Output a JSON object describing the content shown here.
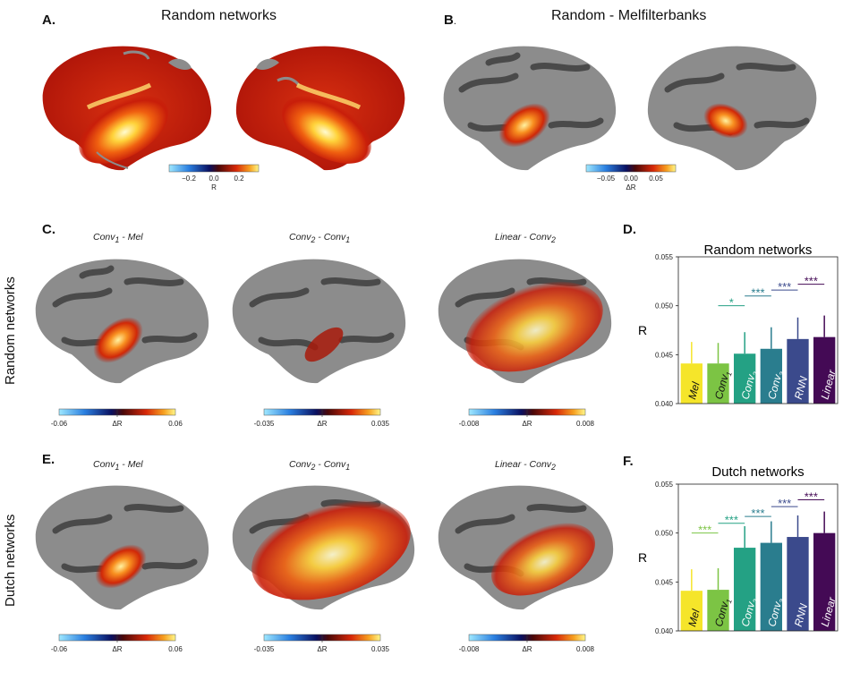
{
  "panels": {
    "A": {
      "label": "A.",
      "title": "Random networks",
      "colorbar": {
        "ticks": [
          "−0.2",
          "0.0",
          "0.2"
        ],
        "label": "R"
      }
    },
    "B": {
      "label": "B",
      "label_suffix": ".",
      "title": "Random - Melfilterbanks",
      "colorbar": {
        "ticks": [
          "−0.05",
          "0.00",
          "0.05"
        ],
        "label": "ΔR"
      }
    },
    "C": {
      "label": "C.",
      "row_label": "Random networks",
      "maps": [
        {
          "sub_a": "Conv",
          "sub_a_idx": "1",
          "sub_b": " - Mel",
          "sub_b_idx": "",
          "cb_min": "-0.06",
          "cb_mid": "ΔR",
          "cb_max": "0.06"
        },
        {
          "sub_a": "Conv",
          "sub_a_idx": "2",
          "sub_b": " - Conv",
          "sub_b_idx": "1",
          "cb_min": "-0.035",
          "cb_mid": "ΔR",
          "cb_max": "0.035"
        },
        {
          "sub_a": "Linear",
          "sub_a_idx": "",
          "sub_b": " - Conv",
          "sub_b_idx": "2",
          "cb_min": "-0.008",
          "cb_mid": "ΔR",
          "cb_max": "0.008"
        }
      ]
    },
    "E": {
      "label": "E.",
      "row_label": "Dutch networks",
      "maps": [
        {
          "sub_a": "Conv",
          "sub_a_idx": "1",
          "sub_b": " - Mel",
          "sub_b_idx": "",
          "cb_min": "-0.06",
          "cb_mid": "ΔR",
          "cb_max": "0.06"
        },
        {
          "sub_a": "Conv",
          "sub_a_idx": "2",
          "sub_b": " - Conv",
          "sub_b_idx": "1",
          "cb_min": "-0.035",
          "cb_mid": "ΔR",
          "cb_max": "0.035"
        },
        {
          "sub_a": "Linear",
          "sub_a_idx": "",
          "sub_b": " - Conv",
          "sub_b_idx": "2",
          "cb_min": "-0.008",
          "cb_mid": "ΔR",
          "cb_max": "0.008"
        }
      ]
    },
    "D": {
      "label": "D."
    },
    "F": {
      "label": "F."
    }
  },
  "colors": {
    "cortex_light": "#8c8c8c",
    "cortex_dark": "#4a4a4a",
    "Mel": "#f5e52a",
    "Conv1": "#7cc444",
    "Conv2": "#24a184",
    "Conv3": "#2a7d8e",
    "RNN": "#3b4a8c",
    "Linear": "#440a55"
  },
  "chart_data": [
    {
      "type": "bar",
      "id": "D",
      "title": "Random networks",
      "ylabel": "R",
      "ylim": [
        0.04,
        0.055
      ],
      "yticks": [
        "0.040",
        "0.045",
        "0.050",
        "0.055"
      ],
      "categories": [
        "Mel",
        "Conv1",
        "Conv2",
        "Conv3",
        "RNN",
        "Linear"
      ],
      "category_labels": [
        [
          "Mel",
          ""
        ],
        [
          "Conv",
          "1"
        ],
        [
          "Conv",
          "2"
        ],
        [
          "Conv",
          "3"
        ],
        [
          "RNN",
          ""
        ],
        [
          "Linear",
          ""
        ]
      ],
      "values": [
        0.0441,
        0.0441,
        0.0451,
        0.0456,
        0.0466,
        0.0468
      ],
      "errors": [
        0.0022,
        0.0021,
        0.0022,
        0.0022,
        0.0022,
        0.0022
      ],
      "significance": [
        {
          "from": 1,
          "to": 2,
          "label": "*",
          "y": 0.05
        },
        {
          "from": 2,
          "to": 3,
          "label": "***",
          "y": 0.051
        },
        {
          "from": 3,
          "to": 4,
          "label": "***",
          "y": 0.0516
        },
        {
          "from": 4,
          "to": 5,
          "label": "***",
          "y": 0.0522
        }
      ]
    },
    {
      "type": "bar",
      "id": "F",
      "title": "Dutch  networks",
      "ylabel": "R",
      "ylim": [
        0.04,
        0.055
      ],
      "yticks": [
        "0.040",
        "0.045",
        "0.050",
        "0.055"
      ],
      "categories": [
        "Mel",
        "Conv1",
        "Conv2",
        "Conv3",
        "RNN",
        "Linear"
      ],
      "category_labels": [
        [
          "Mel",
          ""
        ],
        [
          "Conv",
          "1"
        ],
        [
          "Conv",
          "2"
        ],
        [
          "Conv",
          "3"
        ],
        [
          "RNN",
          ""
        ],
        [
          "Linear",
          ""
        ]
      ],
      "values": [
        0.0441,
        0.0442,
        0.0485,
        0.049,
        0.0496,
        0.05
      ],
      "errors": [
        0.0022,
        0.0022,
        0.0022,
        0.0022,
        0.0022,
        0.0022
      ],
      "significance": [
        {
          "from": 0,
          "to": 1,
          "label": "***",
          "y": 0.05
        },
        {
          "from": 1,
          "to": 2,
          "label": "***",
          "y": 0.051
        },
        {
          "from": 2,
          "to": 3,
          "label": "***",
          "y": 0.0517
        },
        {
          "from": 3,
          "to": 4,
          "label": "***",
          "y": 0.0527
        },
        {
          "from": 4,
          "to": 5,
          "label": "***",
          "y": 0.0534
        }
      ]
    }
  ]
}
